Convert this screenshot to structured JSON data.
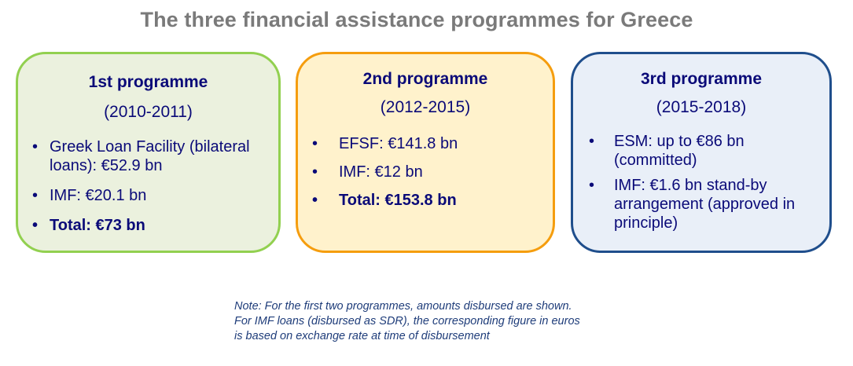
{
  "title": "The three financial assistance programmes for Greece",
  "programmes": [
    {
      "name": "1st programme",
      "years": "(2010-2011)",
      "items": [
        {
          "text": "Greek Loan Facility (bilateral loans): €52.9 bn",
          "bold": false
        },
        {
          "text": "IMF: €20.1 bn",
          "bold": false
        },
        {
          "text": "Total: €73 bn",
          "bold": true
        }
      ],
      "color": "#92d050",
      "fill": "#ebf1de"
    },
    {
      "name": "2nd programme",
      "years": "(2012-2015)",
      "items": [
        {
          "text": "EFSF: €141.8 bn",
          "bold": false
        },
        {
          "text": "IMF: €12 bn",
          "bold": false
        },
        {
          "text": "Total: €153.8 bn",
          "bold": true
        }
      ],
      "color": "#f59d0e",
      "fill": "#fff2cc"
    },
    {
      "name": "3rd programme",
      "years": "(2015-2018)",
      "items": [
        {
          "text": "ESM: up to €86 bn (committed)",
          "bold": false
        },
        {
          "text": "IMF: €1.6 bn stand-by arrangement (approved in principle)",
          "bold": false
        }
      ],
      "color": "#1f4e8c",
      "fill": "#e9eff8"
    }
  ],
  "note": {
    "lines": [
      "Note: For the first two programmes, amounts disbursed are shown.",
      "For IMF loans (disbursed as SDR), the corresponding figure in euros",
      "is based on exchange rate at time of disbursement"
    ]
  }
}
